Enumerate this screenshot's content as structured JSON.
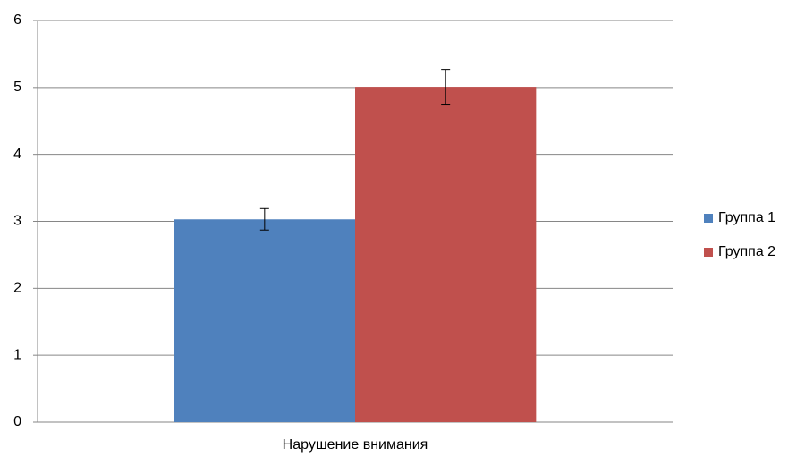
{
  "chart_data": {
    "type": "bar",
    "categories": [
      "Нарушение внимания"
    ],
    "series": [
      {
        "name": "Группа 1",
        "color": "#4f81bd",
        "values": [
          3.03
        ],
        "errors": [
          0.16
        ]
      },
      {
        "name": "Группа 2",
        "color": "#c0504d",
        "values": [
          5.01
        ],
        "errors": [
          0.26
        ]
      }
    ],
    "ylim": [
      0,
      6
    ],
    "yticks": [
      0,
      1,
      2,
      3,
      4,
      5,
      6
    ],
    "grid": true,
    "legend": "right"
  }
}
